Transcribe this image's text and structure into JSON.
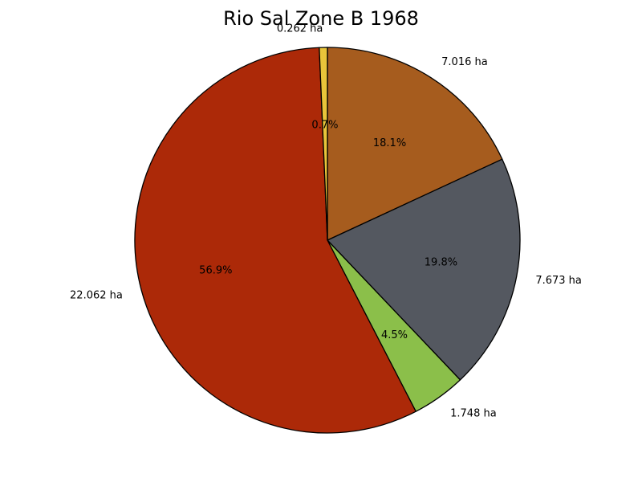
{
  "chart_data": {
    "type": "pie",
    "title": "Rio Sal Zone B 1968",
    "unit": "ha",
    "start_angle_deg": 90,
    "direction": "clockwise",
    "slices": [
      {
        "label": "7.016 ha",
        "value": 7.016,
        "percent_label": "18.1%",
        "color": "#a65c1e"
      },
      {
        "label": "7.673 ha",
        "value": 7.673,
        "percent_label": "19.8%",
        "color": "#545860"
      },
      {
        "label": "1.748 ha",
        "value": 1.748,
        "percent_label": "4.5%",
        "color": "#8bbf4a"
      },
      {
        "label": "22.062 ha",
        "value": 22.062,
        "percent_label": "56.9%",
        "color": "#ac2908"
      },
      {
        "label": "0.262 ha",
        "value": 0.262,
        "percent_label": "0.7%",
        "color": "#e8c53a"
      }
    ]
  }
}
